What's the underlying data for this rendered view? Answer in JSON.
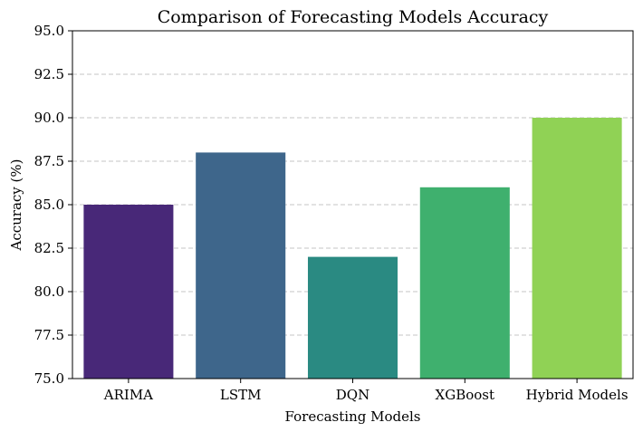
{
  "chart_data": {
    "type": "bar",
    "title": "Comparison of Forecasting Models Accuracy",
    "xlabel": "Forecasting Models",
    "ylabel": "Accuracy (%)",
    "categories": [
      "ARIMA",
      "LSTM",
      "DQN",
      "XGBoost",
      "Hybrid Models"
    ],
    "values": [
      85,
      88,
      82,
      86,
      90
    ],
    "colors": [
      "#482878",
      "#3e668b",
      "#2a8a82",
      "#3fb06e",
      "#90d255"
    ],
    "ylim": [
      75,
      95
    ],
    "yticks": [
      75.0,
      77.5,
      80.0,
      82.5,
      85.0,
      87.5,
      90.0,
      92.5,
      95.0
    ],
    "ytick_labels": [
      "75.0",
      "77.5",
      "80.0",
      "82.5",
      "85.0",
      "87.5",
      "90.0",
      "92.5",
      "95.0"
    ],
    "grid": "y-dashed",
    "legend": "none"
  }
}
